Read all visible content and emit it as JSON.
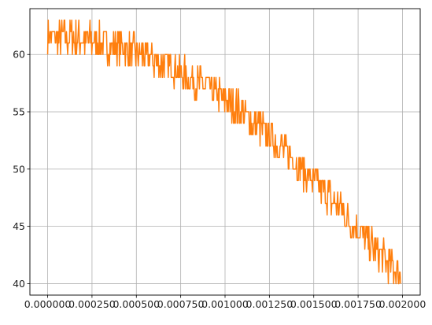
{
  "chart_data": {
    "type": "line",
    "title": "",
    "xlabel": "",
    "ylabel": "",
    "grid": true,
    "xlim": [
      -0.0001,
      0.0021
    ],
    "ylim": [
      39.0,
      64.0
    ],
    "x_ticks": [
      {
        "value": 0.0,
        "label": "0.000000"
      },
      {
        "value": 0.00025,
        "label": "0.000250"
      },
      {
        "value": 0.0005,
        "label": "0.000500"
      },
      {
        "value": 0.00075,
        "label": "0.000750"
      },
      {
        "value": 0.001,
        "label": "0.001000"
      },
      {
        "value": 0.00125,
        "label": "0.001250"
      },
      {
        "value": 0.0015,
        "label": "0.001500"
      },
      {
        "value": 0.00175,
        "label": "0.001750"
      },
      {
        "value": 0.002,
        "label": "0.002000"
      }
    ],
    "y_ticks": [
      {
        "value": 40,
        "label": "40"
      },
      {
        "value": 45,
        "label": "45"
      },
      {
        "value": 50,
        "label": "50"
      },
      {
        "value": 55,
        "label": "55"
      },
      {
        "value": 60,
        "label": "60"
      }
    ],
    "series": [
      {
        "color": "#ff7f0e",
        "x": [
          0.0,
          0.0001,
          0.0002,
          0.0003,
          0.0004,
          0.0005,
          0.0006,
          0.0007,
          0.0008,
          0.0009,
          0.001,
          0.0011,
          0.0012,
          0.0013,
          0.0014,
          0.0015,
          0.0016,
          0.0017,
          0.0018,
          0.0019,
          0.00199
        ],
        "values": [
          61.5,
          61.5,
          61.3,
          61.0,
          60.6,
          60.1,
          59.5,
          58.9,
          58.0,
          57.1,
          56.1,
          54.9,
          53.6,
          52.2,
          50.6,
          49.0,
          47.3,
          45.6,
          43.8,
          42.1,
          40.8
        ],
        "noise_band": 1.5,
        "samples": 600
      }
    ]
  }
}
